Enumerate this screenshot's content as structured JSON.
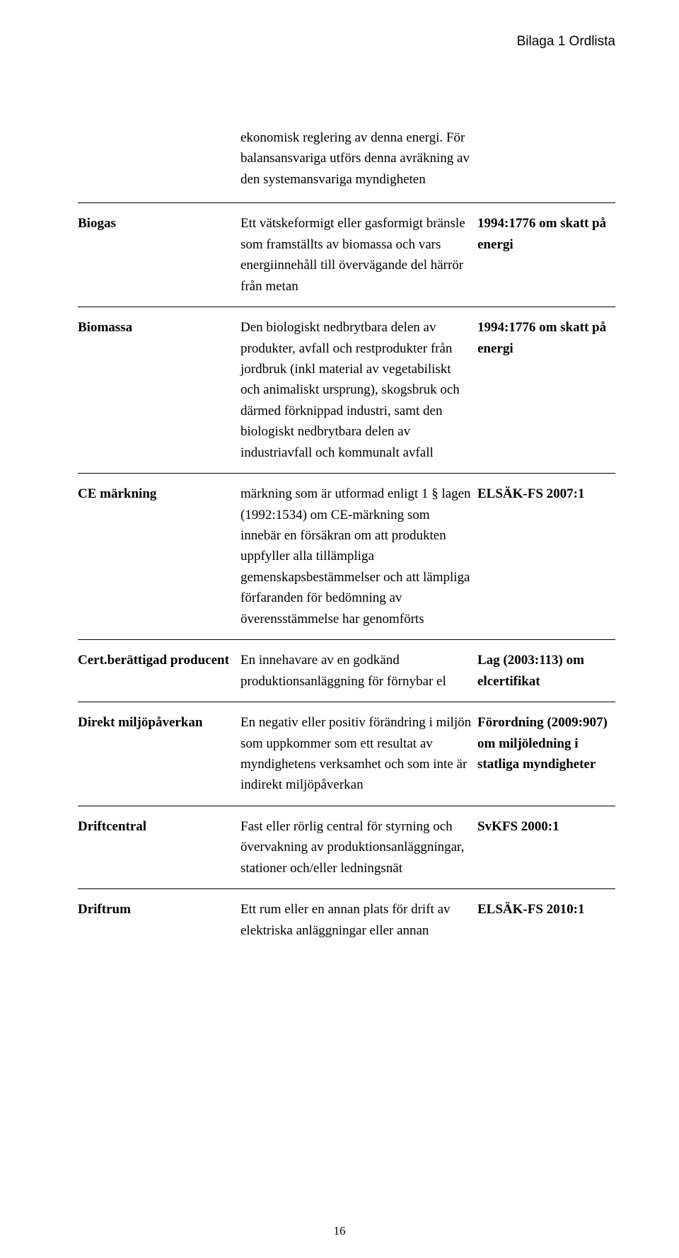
{
  "header": "Bilaga 1 Ordlista",
  "intro": "ekonomisk reglering av denna energi. För balansansvariga utförs denna avräkning av den systemansvariga myndigheten",
  "rows": [
    {
      "term": "Biogas",
      "def": "Ett vätskeformigt eller gasformigt bränsle som framställts av biomassa och vars energiinnehåll till övervägande del härrör från metan",
      "src": "1994:1776 om skatt på energi"
    },
    {
      "term": "Biomassa",
      "def": "Den biologiskt nedbrytbara delen av produkter, avfall och restprodukter från jordbruk (inkl material av vegetabiliskt och animaliskt ursprung), skogsbruk och därmed förknippad industri, samt den biologiskt nedbrytbara delen av industriavfall och kommunalt avfall",
      "src": "1994:1776 om skatt på energi"
    },
    {
      "term": "CE märkning",
      "def": " märkning som är utformad enligt 1 § lagen (1992:1534) om CE-märkning som innebär en försäkran om att produkten uppfyller alla tillämpliga gemenskapsbestämmelser och att lämpliga förfaranden för bedömning av överensstämmelse har genomförts",
      "src": "ELSÄK-FS 2007:1"
    },
    {
      "term": "Cert.berättigad producent",
      "def": "En innehavare av en godkänd produktionsanläggning för förnybar el",
      "src": "Lag (2003:113) om elcertifikat"
    },
    {
      "term": "Direkt miljöpåverkan",
      "def": "En negativ eller positiv förändring i miljön som uppkommer som ett resultat av myndighetens verksamhet och som inte är indirekt miljöpåverkan",
      "src": "Förordning (2009:907) om miljöledning i statliga myndigheter"
    },
    {
      "term": "Driftcentral",
      "def": "Fast eller rörlig central för styrning och övervakning av produktionsanläggningar, stationer och/eller ledningsnät",
      "src": "SvKFS 2000:1"
    },
    {
      "term": "Driftrum",
      "def": "Ett rum eller en annan plats för drift av elektriska anläggningar eller annan",
      "src": "ELSÄK-FS 2010:1"
    }
  ],
  "pageNumber": "16"
}
